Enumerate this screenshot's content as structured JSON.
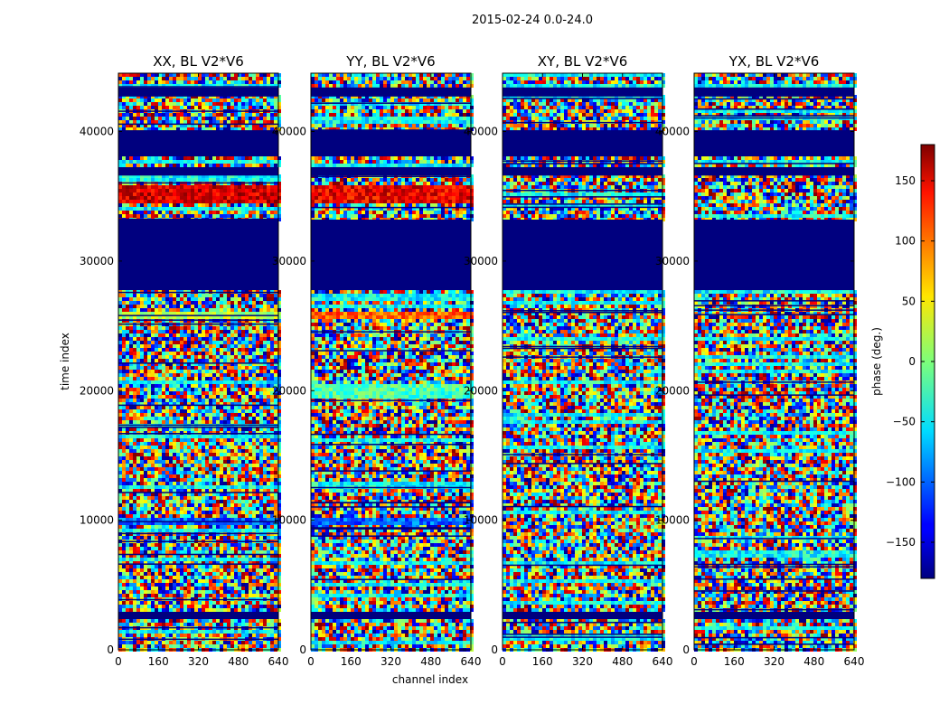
{
  "figure": {
    "suptitle": "2015-02-24 0.0-24.0"
  },
  "chart_data": {
    "type": "heatmap",
    "panels": [
      {
        "title": "XX, BL V2*V6"
      },
      {
        "title": "YY, BL V2*V6"
      },
      {
        "title": "XY, BL V2*V6"
      },
      {
        "title": "YX, BL V2*V6"
      }
    ],
    "xlabel": "channel index",
    "ylabel": "time index",
    "xlim": [
      0,
      640
    ],
    "ylim": [
      0,
      44500
    ],
    "x_ticks": [
      0,
      160,
      320,
      480,
      640
    ],
    "y_ticks": [
      0,
      10000,
      20000,
      30000,
      40000
    ],
    "colormap": "jet",
    "colorbar": {
      "label": "phase (deg.)",
      "range": [
        -180,
        180
      ],
      "ticks": [
        -150,
        -100,
        -50,
        0,
        50,
        100,
        150
      ],
      "tick_labels": [
        "−150",
        "−100",
        "−50",
        "0",
        "50",
        "100",
        "150"
      ]
    },
    "flagged_time_ranges": [
      [
        2400,
        2800
      ],
      [
        27800,
        29600
      ],
      [
        29700,
        33200
      ],
      [
        36600,
        37200
      ],
      [
        38200,
        40100
      ],
      [
        42700,
        43400
      ]
    ],
    "features": [
      {
        "panel": 0,
        "time_range": [
          34500,
          35800
        ],
        "phase": 150,
        "note": "coherent red band"
      },
      {
        "panel": 0,
        "time_range": [
          25500,
          26200
        ],
        "phase": 20,
        "note": "yellow-green band"
      },
      {
        "panel": 0,
        "time_range": [
          9500,
          10300
        ],
        "phase": -100,
        "note": "cyan band"
      },
      {
        "panel": 1,
        "time_range": [
          34500,
          35800
        ],
        "phase": 140,
        "note": "coherent red band"
      },
      {
        "panel": 1,
        "time_range": [
          25500,
          26200
        ],
        "phase": 100,
        "note": "orange band"
      },
      {
        "panel": 1,
        "time_range": [
          9500,
          10300
        ],
        "phase": -100,
        "note": "cyan band"
      },
      {
        "panel": 1,
        "time_range": [
          19500,
          20500
        ],
        "phase": -20,
        "note": "green band"
      }
    ]
  }
}
